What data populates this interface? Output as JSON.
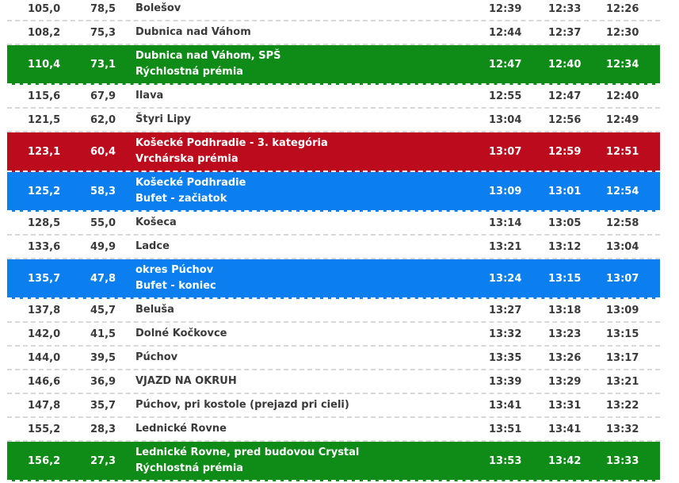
{
  "rows": [
    {
      "km_done": "105,0",
      "km_left": "78,5",
      "name": "Bolešov",
      "note": "",
      "t1": "12:39",
      "t2": "12:33",
      "t3": "12:26"
    },
    {
      "km_done": "108,2",
      "km_left": "75,3",
      "name": "Dubnica nad Váhom",
      "note": "",
      "t1": "12:44",
      "t2": "12:37",
      "t3": "12:30"
    },
    {
      "km_done": "110,4",
      "km_left": "73,1",
      "name": "Dubnica nad Váhom, SPŠ",
      "note": "Rýchlostná prémia",
      "t1": "12:47",
      "t2": "12:40",
      "t3": "12:34"
    },
    {
      "km_done": "115,6",
      "km_left": "67,9",
      "name": "Ilava",
      "note": "",
      "t1": "12:55",
      "t2": "12:47",
      "t3": "12:40"
    },
    {
      "km_done": "121,5",
      "km_left": "62,0",
      "name": "Štyri Lipy",
      "note": "",
      "t1": "13:04",
      "t2": "12:56",
      "t3": "12:49"
    },
    {
      "km_done": "123,1",
      "km_left": "60,4",
      "name": "Košecké Podhradie - 3. kategória",
      "note": "Vrchárska prémia",
      "t1": "13:07",
      "t2": "12:59",
      "t3": "12:51"
    },
    {
      "km_done": "125,2",
      "km_left": "58,3",
      "name": "Košecké Podhradie",
      "note": "Bufet - začiatok",
      "t1": "13:09",
      "t2": "13:01",
      "t3": "12:54"
    },
    {
      "km_done": "128,5",
      "km_left": "55,0",
      "name": "Košeca",
      "note": "",
      "t1": "13:14",
      "t2": "13:05",
      "t3": "12:58"
    },
    {
      "km_done": "133,6",
      "km_left": "49,9",
      "name": "Ladce",
      "note": "",
      "t1": "13:21",
      "t2": "13:12",
      "t3": "13:04"
    },
    {
      "km_done": "135,7",
      "km_left": "47,8",
      "name": "okres Púchov",
      "note": "Bufet - koniec",
      "t1": "13:24",
      "t2": "13:15",
      "t3": "13:07"
    },
    {
      "km_done": "137,8",
      "km_left": "45,7",
      "name": "Beluša",
      "note": "",
      "t1": "13:27",
      "t2": "13:18",
      "t3": "13:09"
    },
    {
      "km_done": "142,0",
      "km_left": "41,5",
      "name": "Dolné Kočkovce",
      "note": "",
      "t1": "13:32",
      "t2": "13:23",
      "t3": "13:15"
    },
    {
      "km_done": "144,0",
      "km_left": "39,5",
      "name": "Púchov",
      "note": "",
      "t1": "13:35",
      "t2": "13:26",
      "t3": "13:17"
    },
    {
      "km_done": "146,6",
      "km_left": "36,9",
      "name": "VJAZD NA OKRUH",
      "note": "",
      "t1": "13:39",
      "t2": "13:29",
      "t3": "13:21"
    },
    {
      "km_done": "147,8",
      "km_left": "35,7",
      "name": "Púchov, pri kostole (prejazd pri cieli)",
      "note": "",
      "t1": "13:41",
      "t2": "13:31",
      "t3": "13:22"
    },
    {
      "km_done": "155,2",
      "km_left": "28,3",
      "name": "Lednické Rovne",
      "note": "",
      "t1": "13:51",
      "t2": "13:41",
      "t3": "13:32"
    },
    {
      "km_done": "156,2",
      "km_left": "27,3",
      "name": "Lednické Rovne, pred budovou Crystal",
      "note": "Rýchlostná prémia",
      "t1": "13:53",
      "t2": "13:42",
      "t3": "13:33"
    }
  ],
  "row_colors": {
    "sprint": "#0e8c17",
    "climb": "#bd0b1e",
    "feed": "#0b7ff0"
  }
}
